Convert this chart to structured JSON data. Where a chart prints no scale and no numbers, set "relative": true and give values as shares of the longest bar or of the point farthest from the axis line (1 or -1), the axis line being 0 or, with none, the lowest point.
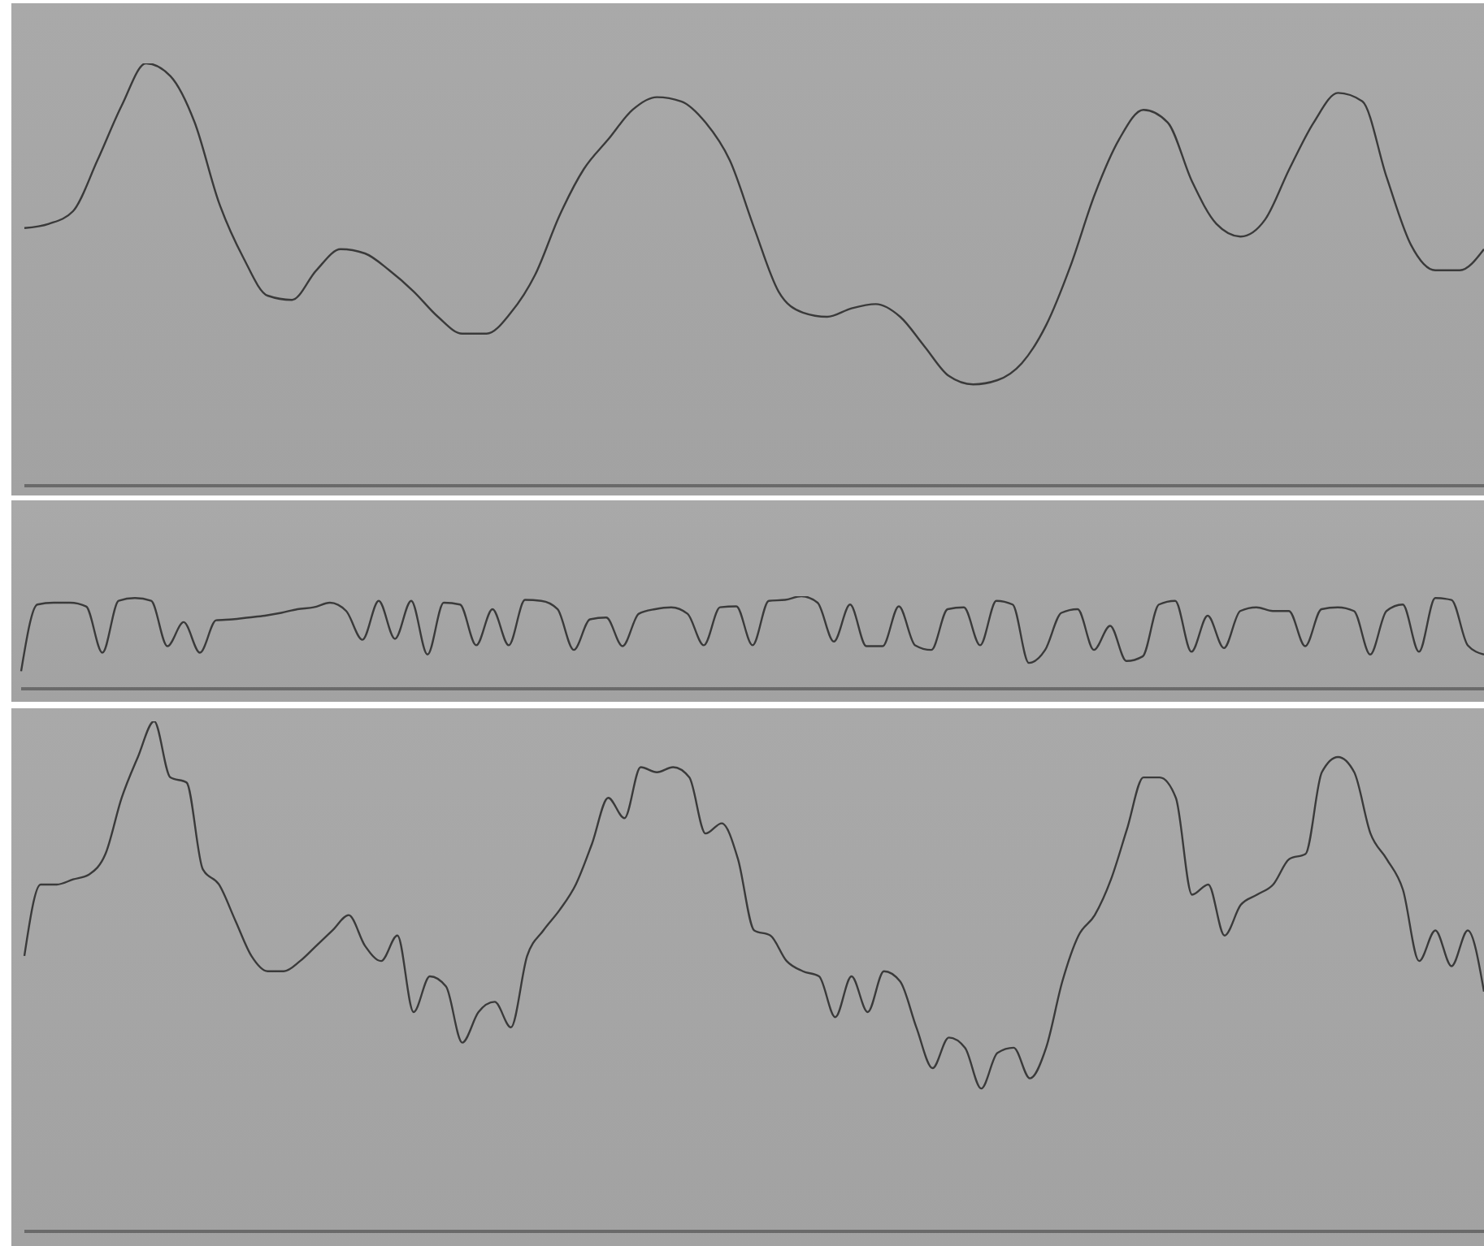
{
  "chart_data": [
    {
      "type": "line",
      "relative": true,
      "marker": "none",
      "categories": [
        null,
        null,
        null,
        null,
        null,
        null,
        null,
        null,
        null,
        null,
        null,
        null,
        null,
        null,
        null,
        null,
        null,
        null,
        null,
        null,
        null,
        null,
        null,
        null,
        null,
        null,
        null,
        null,
        null,
        null,
        null,
        null,
        null,
        null,
        null,
        null,
        null,
        null,
        null,
        null,
        null,
        null,
        null,
        null,
        null,
        null,
        null,
        null,
        null,
        null,
        null,
        null,
        null,
        null,
        null,
        null,
        null,
        null,
        null,
        null,
        null
      ],
      "series": [
        {
          "color": "#3a3a3a",
          "values": [
            0.61,
            0.62,
            0.65,
            0.77,
            0.9,
            1,
            0.97,
            0.86,
            0.67,
            0.54,
            0.45,
            0.44,
            0.51,
            0.56,
            0.55,
            0.51,
            0.46,
            0.4,
            0.36,
            0.36,
            0.41,
            0.5,
            0.64,
            0.75,
            0.82,
            0.89,
            0.92,
            0.91,
            0.86,
            0.77,
            0.61,
            0.46,
            0.41,
            0.4,
            0.42,
            0.43,
            0.4,
            0.33,
            0.26,
            0.24,
            0.25,
            0.29,
            0.38,
            0.52,
            0.69,
            0.82,
            0.89,
            0.86,
            0.72,
            0.62,
            0.59,
            0.63,
            0.75,
            0.86,
            0.93,
            0.91,
            0.73,
            0.57,
            0.51,
            0.51,
            0.56
          ]
        }
      ]
    },
    {
      "type": "line",
      "relative": true,
      "marker": "none",
      "categories": [
        null,
        null,
        null,
        null,
        null,
        null,
        null,
        null,
        null,
        null,
        null,
        null,
        null,
        null,
        null,
        null,
        null,
        null,
        null,
        null,
        null,
        null,
        null,
        null,
        null,
        null,
        null,
        null,
        null,
        null,
        null,
        null,
        null,
        null,
        null,
        null,
        null,
        null,
        null,
        null,
        null,
        null,
        null,
        null,
        null,
        null,
        null,
        null,
        null,
        null,
        null,
        null,
        null,
        null,
        null,
        null,
        null,
        null,
        null,
        null,
        null,
        null,
        null,
        null,
        null,
        null,
        null,
        null,
        null,
        null,
        null,
        null,
        null,
        null,
        null,
        null,
        null,
        null,
        null,
        null,
        null,
        null,
        null,
        null,
        null,
        null,
        null,
        null,
        null,
        null,
        null
      ],
      "series": [
        {
          "color": "#3a3a3a",
          "values": [
            0.19,
            0.91,
            0.93,
            0.93,
            0.89,
            0.39,
            0.95,
            0.98,
            0.95,
            0.46,
            0.72,
            0.39,
            0.74,
            0.75,
            0.77,
            0.79,
            0.82,
            0.86,
            0.88,
            0.93,
            0.84,
            0.53,
            0.95,
            0.54,
            0.95,
            0.37,
            0.93,
            0.91,
            0.47,
            0.86,
            0.47,
            0.96,
            0.95,
            0.86,
            0.42,
            0.75,
            0.77,
            0.46,
            0.81,
            0.86,
            0.88,
            0.81,
            0.47,
            0.88,
            0.89,
            0.47,
            0.95,
            0.96,
            1,
            0.93,
            0.51,
            0.91,
            0.46,
            0.46,
            0.89,
            0.47,
            0.42,
            0.86,
            0.88,
            0.47,
            0.95,
            0.91,
            0.28,
            0.42,
            0.82,
            0.86,
            0.42,
            0.68,
            0.3,
            0.35,
            0.91,
            0.95,
            0.4,
            0.79,
            0.44,
            0.84,
            0.88,
            0.84,
            0.84,
            0.46,
            0.86,
            0.88,
            0.84,
            0.37,
            0.84,
            0.91,
            0.4,
            0.98,
            0.96,
            0.47,
            0.37
          ]
        }
      ]
    },
    {
      "type": "line",
      "relative": true,
      "marker": "none",
      "categories": [
        null,
        null,
        null,
        null,
        null,
        null,
        null,
        null,
        null,
        null,
        null,
        null,
        null,
        null,
        null,
        null,
        null,
        null,
        null,
        null,
        null,
        null,
        null,
        null,
        null,
        null,
        null,
        null,
        null,
        null,
        null,
        null,
        null,
        null,
        null,
        null,
        null,
        null,
        null,
        null,
        null,
        null,
        null,
        null,
        null,
        null,
        null,
        null,
        null,
        null,
        null,
        null,
        null,
        null,
        null,
        null,
        null,
        null,
        null,
        null,
        null,
        null,
        null,
        null,
        null,
        null,
        null,
        null,
        null,
        null,
        null,
        null,
        null,
        null,
        null,
        null,
        null,
        null,
        null,
        null,
        null,
        null,
        null,
        null,
        null,
        null,
        null,
        null,
        null,
        null,
        null
      ],
      "series": [
        {
          "color": "#3a3a3a",
          "values": [
            0.54,
            0.68,
            0.68,
            0.69,
            0.7,
            0.74,
            0.85,
            0.93,
            1,
            0.89,
            0.88,
            0.71,
            0.68,
            0.61,
            0.54,
            0.51,
            0.51,
            0.53,
            0.56,
            0.59,
            0.62,
            0.56,
            0.53,
            0.58,
            0.43,
            0.5,
            0.48,
            0.37,
            0.43,
            0.45,
            0.4,
            0.54,
            0.59,
            0.63,
            0.68,
            0.76,
            0.85,
            0.81,
            0.91,
            0.9,
            0.91,
            0.89,
            0.78,
            0.8,
            0.73,
            0.59,
            0.58,
            0.53,
            0.51,
            0.5,
            0.42,
            0.5,
            0.43,
            0.51,
            0.49,
            0.4,
            0.32,
            0.38,
            0.36,
            0.28,
            0.35,
            0.36,
            0.3,
            0.36,
            0.49,
            0.58,
            0.62,
            0.69,
            0.79,
            0.89,
            0.89,
            0.85,
            0.66,
            0.68,
            0.58,
            0.64,
            0.66,
            0.68,
            0.73,
            0.74,
            0.9,
            0.93,
            0.9,
            0.78,
            0.73,
            0.67,
            0.53,
            0.59,
            0.52,
            0.59,
            0.47
          ]
        }
      ]
    }
  ]
}
